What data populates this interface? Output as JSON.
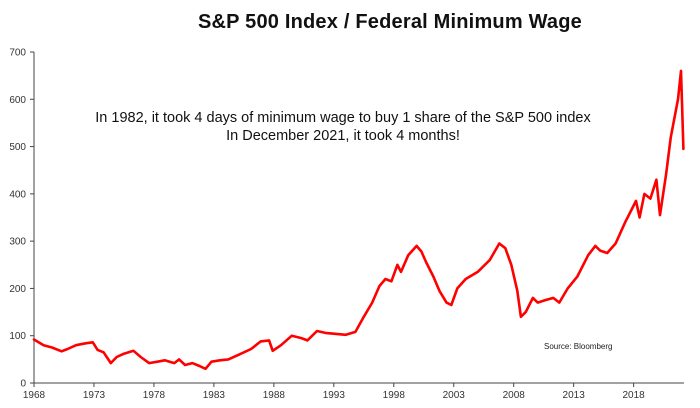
{
  "chart_data": {
    "type": "line",
    "title": "S&P 500 Index / Federal Minimum Wage",
    "xlabel": "",
    "ylabel": "",
    "xlim": [
      1968,
      2022.2
    ],
    "ylim": [
      0,
      700
    ],
    "grid": false,
    "legend": "none",
    "x_ticks": [
      1968,
      1973,
      1978,
      1983,
      1988,
      1993,
      1998,
      2003,
      2008,
      2013,
      2018
    ],
    "x_tick_labels": [
      "1968",
      "1973",
      "1978",
      "1983",
      "1988",
      "1993",
      "1998",
      "2003",
      "2008",
      "2013",
      "2018"
    ],
    "y_ticks": [
      0,
      100,
      200,
      300,
      400,
      500,
      600,
      700
    ],
    "y_tick_labels": [
      "0",
      "100",
      "200",
      "300",
      "400",
      "500",
      "600",
      "700"
    ],
    "annotations": [
      "In 1982, it took 4 days of minimum wage to buy 1 share of the S&P 500 index",
      "In December 2021, it took 4 months!"
    ],
    "source": "Source: Bloomberg",
    "line_color": "#ff0000",
    "series": [
      {
        "x": [
          1968.0,
          1968.8,
          1969.5,
          1970.3,
          1970.8,
          1971.5,
          1972.3,
          1972.9,
          1973.3,
          1973.8,
          1974.4,
          1974.9,
          1975.5,
          1976.3,
          1976.9,
          1977.6,
          1978.3,
          1978.9,
          1979.7,
          1980.1,
          1980.6,
          1981.2,
          1981.8,
          1982.3,
          1982.8,
          1983.5,
          1984.2,
          1985.1,
          1986.1,
          1986.9,
          1987.6,
          1987.9,
          1988.6,
          1989.5,
          1990.3,
          1990.8,
          1991.6,
          1992.3,
          1993.1,
          1994.0,
          1994.8,
          1995.5,
          1996.2,
          1996.8,
          1997.3,
          1997.8,
          1998.3,
          1998.6,
          1999.2,
          1999.9,
          2000.3,
          2000.7,
          2001.3,
          2001.8,
          2002.4,
          2002.8,
          2003.3,
          2004.0,
          2005.0,
          2006.0,
          2006.8,
          2007.3,
          2007.8,
          2008.3,
          2008.6,
          2009.0,
          2009.6,
          2010.0,
          2010.6,
          2011.3,
          2011.8,
          2012.5,
          2013.3,
          2014.2,
          2014.8,
          2015.2,
          2015.8,
          2016.5,
          2017.3,
          2017.9,
          2018.2,
          2018.5,
          2018.9,
          2019.4,
          2019.9,
          2020.2,
          2020.7,
          2021.1,
          2021.7,
          2021.95,
          2022.0,
          2022.15
        ],
        "values": [
          92,
          80,
          75,
          67,
          72,
          80,
          84,
          86,
          70,
          65,
          42,
          55,
          62,
          68,
          55,
          42,
          45,
          48,
          42,
          50,
          38,
          42,
          36,
          30,
          45,
          48,
          50,
          60,
          72,
          88,
          90,
          68,
          80,
          100,
          95,
          90,
          110,
          106,
          104,
          102,
          108,
          140,
          170,
          205,
          220,
          215,
          250,
          235,
          270,
          290,
          278,
          255,
          225,
          195,
          170,
          165,
          200,
          220,
          235,
          260,
          295,
          285,
          250,
          195,
          140,
          150,
          180,
          170,
          175,
          180,
          170,
          200,
          225,
          270,
          290,
          280,
          275,
          295,
          340,
          370,
          385,
          350,
          400,
          390,
          430,
          355,
          440,
          520,
          600,
          660,
          620,
          495
        ]
      }
    ]
  }
}
